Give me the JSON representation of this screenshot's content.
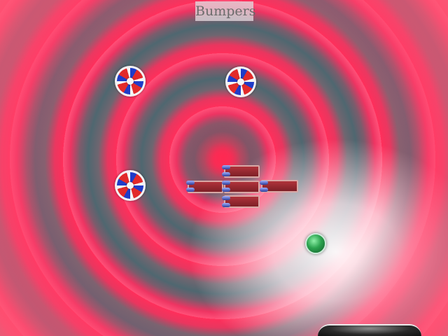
{
  "level": {
    "title": "Bumpers"
  },
  "palette": {
    "swirl_red": "#ff2f5b",
    "swirl_slate": "#4f6770",
    "bumper_red": "#e22a2a",
    "bumper_blue": "#1f3cc8",
    "brick_red": "#9a2a31",
    "ball_green": "#2ca34f"
  },
  "objects": {
    "bumpers": [
      {
        "kind": "bumper"
      },
      {
        "kind": "bumper"
      },
      {
        "kind": "bumper"
      }
    ],
    "bricks": [
      {
        "kind": "brick"
      },
      {
        "kind": "brick"
      },
      {
        "kind": "brick"
      },
      {
        "kind": "brick"
      },
      {
        "kind": "brick"
      }
    ],
    "ball": {
      "kind": "ball"
    },
    "paddle": {
      "kind": "paddle"
    }
  }
}
